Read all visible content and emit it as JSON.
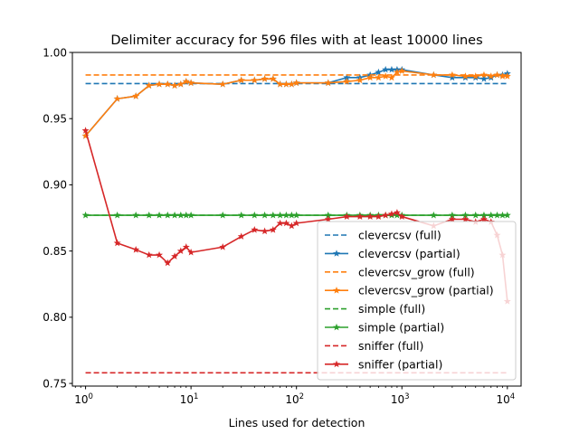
{
  "chart_data": {
    "type": "line",
    "title": "Delimiter accuracy for 596 files with at least 10000 lines",
    "xlabel": "Lines used for detection",
    "ylabel": "",
    "xscale": "log",
    "xlim": [
      0.75,
      13500
    ],
    "ylim": [
      0.748,
      1.0
    ],
    "xticks": [
      {
        "value": 1,
        "base": "10",
        "exp": "0"
      },
      {
        "value": 10,
        "base": "10",
        "exp": "1"
      },
      {
        "value": 100,
        "base": "10",
        "exp": "2"
      },
      {
        "value": 1000,
        "base": "10",
        "exp": "3"
      },
      {
        "value": 10000,
        "base": "10",
        "exp": "4"
      }
    ],
    "yticks": [
      {
        "value": 0.75,
        "label": "0.75"
      },
      {
        "value": 0.8,
        "label": "0.80"
      },
      {
        "value": 0.85,
        "label": "0.85"
      },
      {
        "value": 0.9,
        "label": "0.90"
      },
      {
        "value": 0.95,
        "label": "0.95"
      },
      {
        "value": 1.0,
        "label": "1.00"
      }
    ],
    "grid": false,
    "legend_position": "lower-right",
    "x": [
      1,
      2,
      3,
      4,
      5,
      6,
      7,
      8,
      9,
      10,
      20,
      30,
      40,
      50,
      60,
      70,
      80,
      90,
      100,
      200,
      300,
      400,
      500,
      600,
      700,
      800,
      900,
      1000,
      2000,
      3000,
      4000,
      5000,
      6000,
      7000,
      8000,
      9000,
      10000
    ],
    "series": [
      {
        "name": "clevercsv (full)",
        "style": "dashed",
        "color": "#1f77b4",
        "constant": 0.9765
      },
      {
        "name": "clevercsv (partial)",
        "style": "solid-star",
        "color": "#1f77b4",
        "values": [
          0.937,
          0.965,
          0.967,
          0.975,
          0.976,
          0.976,
          0.975,
          0.976,
          0.978,
          0.977,
          0.976,
          0.979,
          0.979,
          0.98,
          0.98,
          0.976,
          0.976,
          0.976,
          0.977,
          0.977,
          0.981,
          0.981,
          0.983,
          0.985,
          0.987,
          0.987,
          0.987,
          0.987,
          0.983,
          0.981,
          0.981,
          0.981,
          0.98,
          0.981,
          0.983,
          0.983,
          0.984
        ]
      },
      {
        "name": "clevercsv_grow (full)",
        "style": "dashed",
        "color": "#ff7f0e",
        "constant": 0.983
      },
      {
        "name": "clevercsv_grow (partial)",
        "style": "solid-star",
        "color": "#ff7f0e",
        "values": [
          0.937,
          0.965,
          0.967,
          0.975,
          0.976,
          0.976,
          0.975,
          0.976,
          0.978,
          0.977,
          0.976,
          0.979,
          0.979,
          0.98,
          0.98,
          0.976,
          0.976,
          0.976,
          0.977,
          0.977,
          0.978,
          0.979,
          0.981,
          0.981,
          0.982,
          0.981,
          0.985,
          0.986,
          0.983,
          0.983,
          0.982,
          0.982,
          0.983,
          0.982,
          0.983,
          0.982,
          0.982
        ]
      },
      {
        "name": "simple (full)",
        "style": "dashed",
        "color": "#2ca02c",
        "constant": 0.877
      },
      {
        "name": "simple (partial)",
        "style": "solid-star",
        "color": "#2ca02c",
        "values": [
          0.877,
          0.877,
          0.877,
          0.877,
          0.877,
          0.877,
          0.877,
          0.877,
          0.877,
          0.877,
          0.877,
          0.877,
          0.877,
          0.877,
          0.877,
          0.877,
          0.877,
          0.877,
          0.877,
          0.877,
          0.877,
          0.877,
          0.877,
          0.877,
          0.877,
          0.877,
          0.877,
          0.877,
          0.877,
          0.877,
          0.877,
          0.877,
          0.877,
          0.877,
          0.877,
          0.877,
          0.877
        ]
      },
      {
        "name": "sniffer (full)",
        "style": "dashed",
        "color": "#d62728",
        "constant": 0.758
      },
      {
        "name": "sniffer (partial)",
        "style": "solid-star",
        "color": "#d62728",
        "values": [
          0.941,
          0.856,
          0.851,
          0.847,
          0.847,
          0.841,
          0.846,
          0.85,
          0.853,
          0.849,
          0.853,
          0.861,
          0.866,
          0.865,
          0.866,
          0.871,
          0.871,
          0.869,
          0.871,
          0.874,
          0.876,
          0.876,
          0.876,
          0.876,
          0.877,
          0.878,
          0.879,
          0.876,
          0.869,
          0.874,
          0.874,
          0.872,
          0.874,
          0.872,
          0.862,
          0.847,
          0.812
        ]
      }
    ]
  }
}
